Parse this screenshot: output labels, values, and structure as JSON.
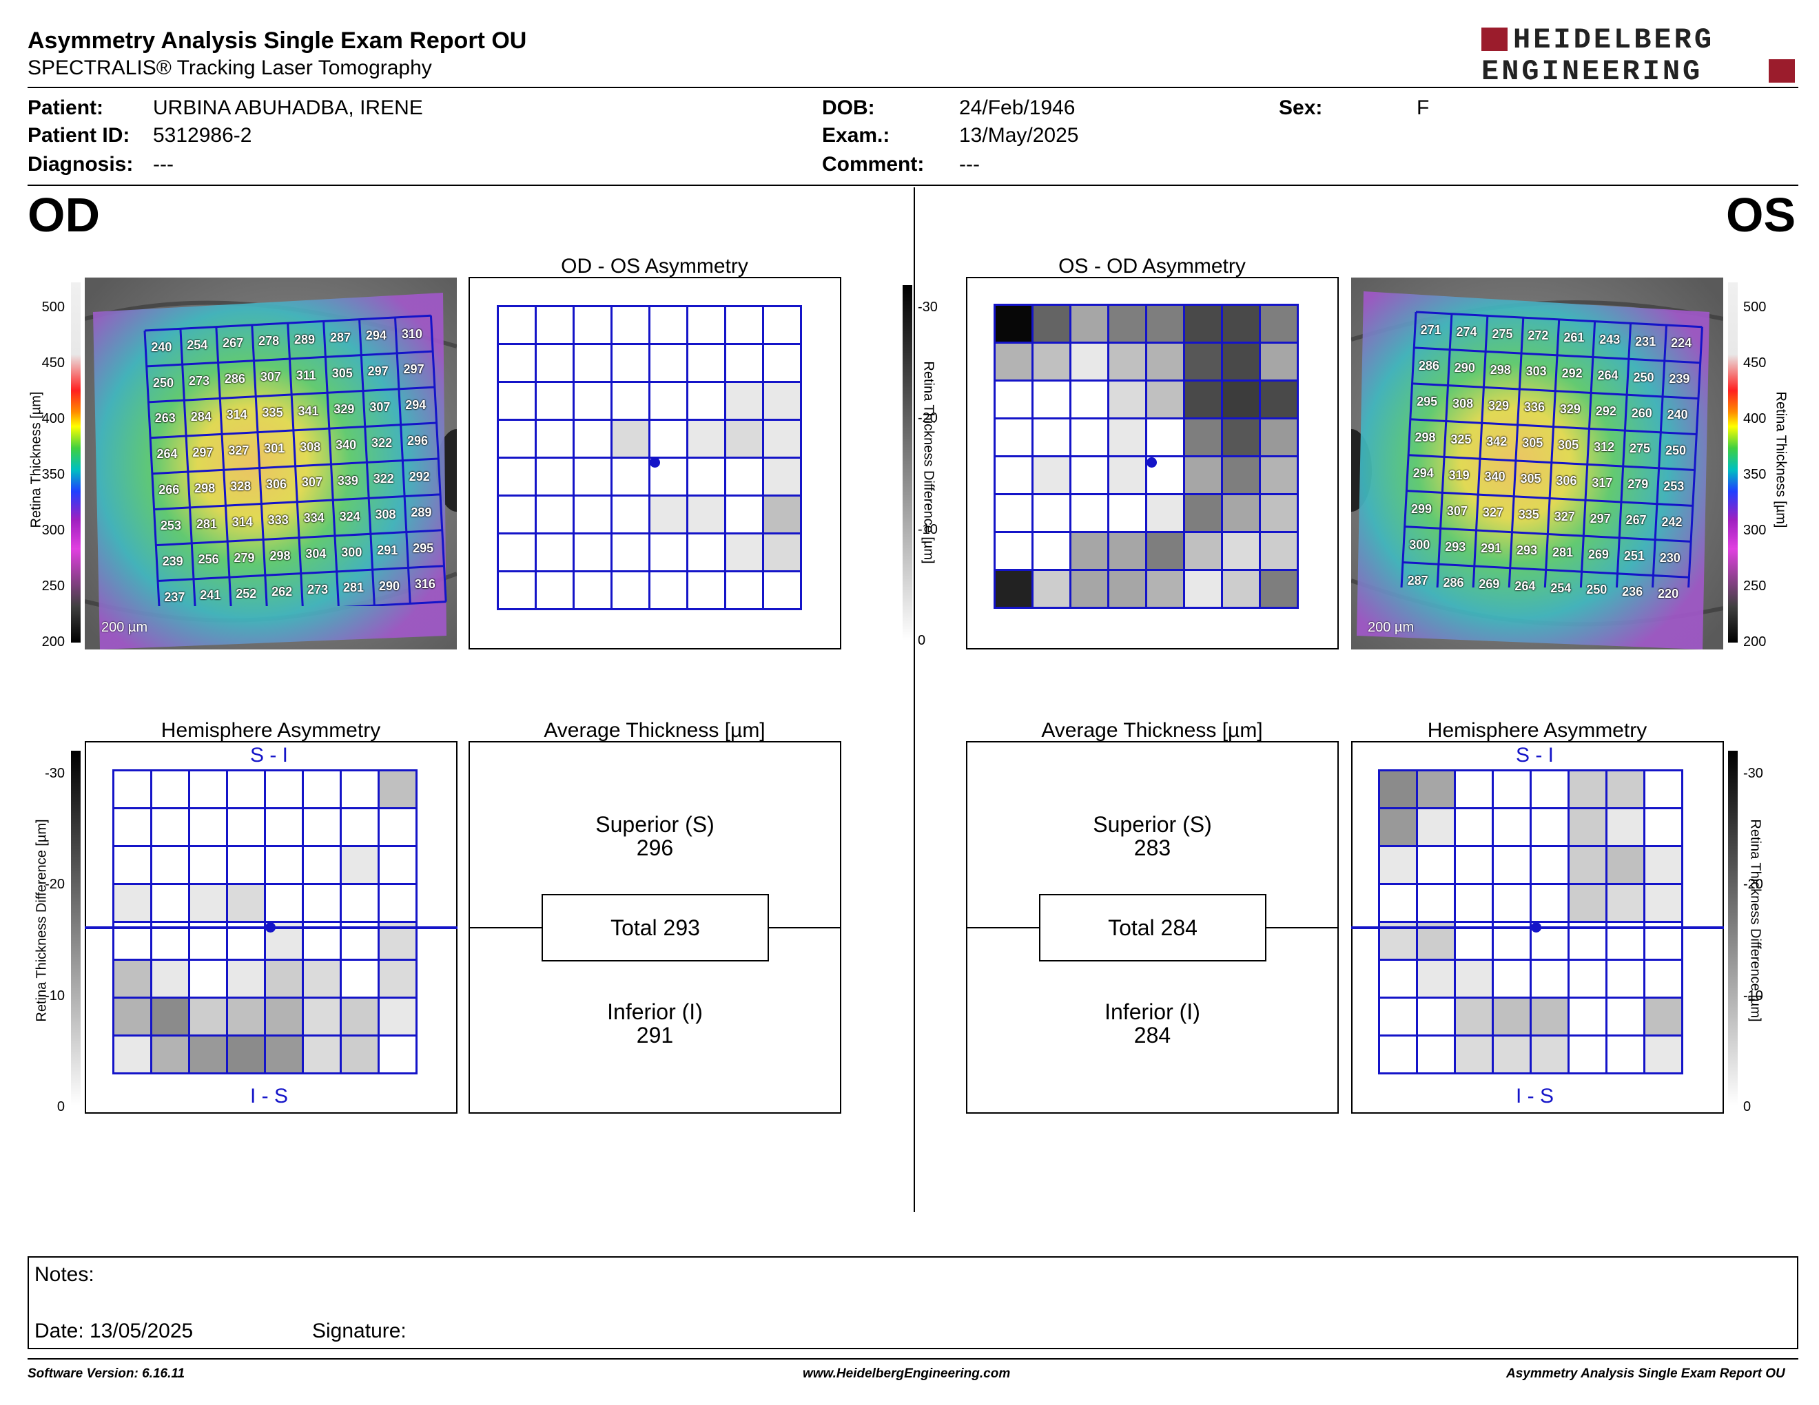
{
  "header": {
    "title": "Asymmetry Analysis Single Exam Report OU",
    "subtitle": "SPECTRALIS® Tracking Laser Tomography",
    "logo_line1": "HEIDELBERG",
    "logo_line2": "ENGINEERING"
  },
  "patient": {
    "patient_label": "Patient:",
    "patient_value": "URBINA ABUHADBA, IRENE",
    "id_label": "Patient ID:",
    "id_value": "5312986-2",
    "diagnosis_label": "Diagnosis:",
    "diagnosis_value": "---",
    "dob_label": "DOB:",
    "dob_value": "24/Feb/1946",
    "exam_label": "Exam.:",
    "exam_value": "13/May/2025",
    "comment_label": "Comment:",
    "comment_value": "---",
    "sex_label": "Sex:",
    "sex_value": "F"
  },
  "od": {
    "eye_label": "OD",
    "asym_title": "OD - OS Asymmetry",
    "hemi_title": "Hemisphere Asymmetry",
    "avg_title": "Average Thickness [µm]",
    "scale_label": "200 µm",
    "superior_label": "Superior (S)",
    "superior_value": "296",
    "total_label": "Total 293",
    "inferior_label": "Inferior (I)",
    "inferior_value": "291",
    "thickness_grid": [
      [
        240,
        254,
        267,
        278,
        289,
        287,
        294,
        310
      ],
      [
        250,
        273,
        286,
        307,
        311,
        305,
        297,
        297
      ],
      [
        263,
        284,
        314,
        335,
        341,
        329,
        307,
        294
      ],
      [
        264,
        297,
        327,
        301,
        308,
        340,
        322,
        296
      ],
      [
        266,
        298,
        328,
        306,
        307,
        339,
        322,
        292
      ],
      [
        253,
        281,
        314,
        333,
        334,
        324,
        308,
        289
      ],
      [
        239,
        256,
        279,
        298,
        304,
        300,
        291,
        295
      ],
      [
        237,
        241,
        252,
        262,
        273,
        281,
        290,
        316
      ]
    ],
    "asym_shades": [
      [
        0,
        0,
        0,
        0,
        0,
        0,
        0,
        0
      ],
      [
        0,
        0,
        0,
        0,
        0,
        0,
        0,
        0
      ],
      [
        0,
        0,
        0,
        0,
        0,
        0,
        1,
        1
      ],
      [
        0,
        0,
        0,
        2,
        0,
        1,
        2,
        1
      ],
      [
        0,
        0,
        0,
        0,
        0,
        0,
        0,
        1
      ],
      [
        0,
        0,
        0,
        0,
        1,
        1,
        0,
        4
      ],
      [
        0,
        0,
        0,
        0,
        0,
        0,
        1,
        2
      ],
      [
        0,
        0,
        0,
        0,
        0,
        0,
        0,
        0
      ]
    ],
    "hemi_shades": [
      [
        0,
        0,
        0,
        0,
        0,
        0,
        0,
        4
      ],
      [
        0,
        0,
        0,
        0,
        0,
        0,
        0,
        0
      ],
      [
        0,
        0,
        0,
        0,
        0,
        0,
        1,
        0
      ],
      [
        1,
        0,
        1,
        2,
        0,
        0,
        0,
        0
      ],
      [
        0,
        0,
        0,
        0,
        1,
        0,
        0,
        2
      ],
      [
        4,
        1,
        0,
        1,
        3,
        2,
        0,
        2
      ],
      [
        5,
        8,
        3,
        4,
        5,
        2,
        3,
        1
      ],
      [
        1,
        5,
        7,
        8,
        7,
        2,
        3,
        0
      ]
    ],
    "hemi_top": "S - I",
    "hemi_bottom": "I - S"
  },
  "os": {
    "eye_label": "OS",
    "asym_title": "OS - OD Asymmetry",
    "hemi_title": "Hemisphere Asymmetry",
    "avg_title": "Average Thickness [µm]",
    "scale_label": "200 µm",
    "superior_label": "Superior (S)",
    "superior_value": "283",
    "total_label": "Total 284",
    "inferior_label": "Inferior (I)",
    "inferior_value": "284",
    "thickness_grid": [
      [
        271,
        274,
        275,
        272,
        261,
        243,
        231,
        224
      ],
      [
        286,
        290,
        298,
        303,
        292,
        264,
        250,
        239
      ],
      [
        295,
        308,
        329,
        336,
        329,
        292,
        260,
        240
      ],
      [
        298,
        325,
        342,
        305,
        305,
        312,
        275,
        250
      ],
      [
        294,
        319,
        340,
        305,
        306,
        317,
        279,
        253
      ],
      [
        299,
        307,
        327,
        335,
        327,
        297,
        267,
        242
      ],
      [
        300,
        293,
        291,
        293,
        281,
        269,
        251,
        230
      ],
      [
        287,
        286,
        269,
        264,
        254,
        250,
        236,
        220
      ]
    ],
    "asym_shades": [
      [
        18,
        11,
        6,
        9,
        9,
        13,
        13,
        9
      ],
      [
        5,
        4,
        1,
        4,
        5,
        12,
        13,
        6
      ],
      [
        0,
        0,
        0,
        2,
        4,
        13,
        14,
        13
      ],
      [
        0,
        0,
        0,
        1,
        0,
        9,
        12,
        7
      ],
      [
        0,
        1,
        0,
        1,
        0,
        6,
        9,
        5
      ],
      [
        0,
        0,
        0,
        0,
        1,
        9,
        6,
        4
      ],
      [
        0,
        0,
        6,
        6,
        9,
        4,
        2,
        3
      ],
      [
        16,
        3,
        6,
        6,
        5,
        1,
        3,
        9
      ]
    ],
    "hemi_shades": [
      [
        8,
        6,
        0,
        0,
        0,
        3,
        3,
        0
      ],
      [
        7,
        1,
        0,
        0,
        0,
        3,
        1,
        0
      ],
      [
        1,
        0,
        0,
        0,
        0,
        3,
        4,
        1
      ],
      [
        0,
        0,
        0,
        0,
        0,
        3,
        2,
        1
      ],
      [
        2,
        3,
        0,
        0,
        0,
        0,
        0,
        0
      ],
      [
        0,
        1,
        1,
        0,
        0,
        0,
        0,
        0
      ],
      [
        0,
        0,
        3,
        4,
        4,
        0,
        0,
        4
      ],
      [
        0,
        0,
        2,
        2,
        2,
        0,
        0,
        1
      ]
    ],
    "hemi_top": "S - I",
    "hemi_bottom": "I - S"
  },
  "colorbar": {
    "thickness_ticks": [
      "500",
      "450",
      "400",
      "350",
      "300",
      "250",
      "200"
    ],
    "thickness_label": "Retina Thickness [µm]",
    "diff_ticks": [
      "-30",
      "-20",
      "-10",
      "0"
    ],
    "diff_label": "Retina Thickness Difference [µm]"
  },
  "notes": {
    "notes_label": "Notes:",
    "date_label": "Date: 13/05/2025",
    "signature_label": "Signature:"
  },
  "footer": {
    "software": "Software Version: 6.16.11",
    "website": "www.HeidelbergEngineering.com",
    "report": "Asymmetry Analysis Single Exam Report OU"
  },
  "colors": {
    "grid_blue": "#1414c8",
    "logo_red": "#9b1c2c"
  }
}
